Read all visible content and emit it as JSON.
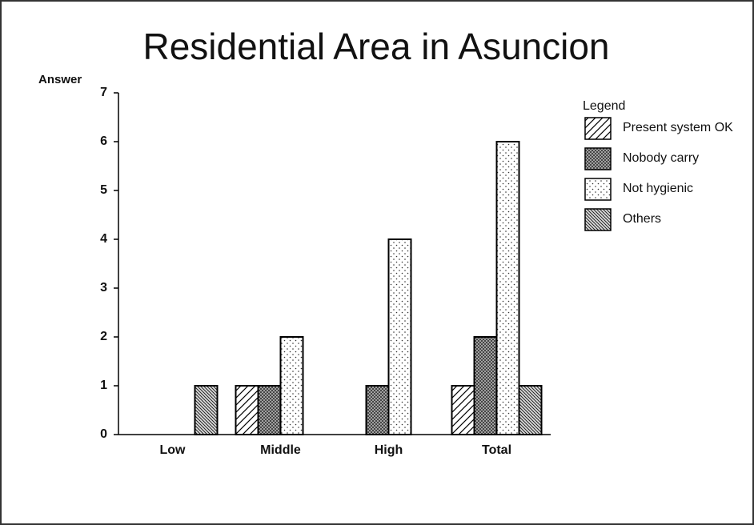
{
  "chart_data": {
    "type": "bar",
    "title": "Residential Area in Asuncion",
    "y_label": "Answer",
    "categories": [
      "Low",
      "Middle",
      "High",
      "Total"
    ],
    "series": [
      {
        "name": "Present system OK",
        "color": "#000000",
        "pattern": "hatch",
        "values": [
          0,
          1,
          0,
          1
        ]
      },
      {
        "name": "Nobody carry",
        "color": "#000000",
        "pattern": "crosshatch",
        "values": [
          0,
          1,
          1,
          2
        ]
      },
      {
        "name": "Not hygienic",
        "color": "#000000",
        "pattern": "dots",
        "values": [
          0,
          2,
          4,
          6
        ]
      },
      {
        "name": "Others",
        "color": "#000000",
        "pattern": "densehatch",
        "values": [
          1,
          0,
          0,
          1
        ]
      }
    ],
    "ylim": [
      0,
      7
    ],
    "yticks": [
      0,
      1,
      2,
      3,
      4,
      5,
      6,
      7
    ],
    "grid": false,
    "legend": {
      "title": "Legend",
      "position": "right"
    }
  }
}
